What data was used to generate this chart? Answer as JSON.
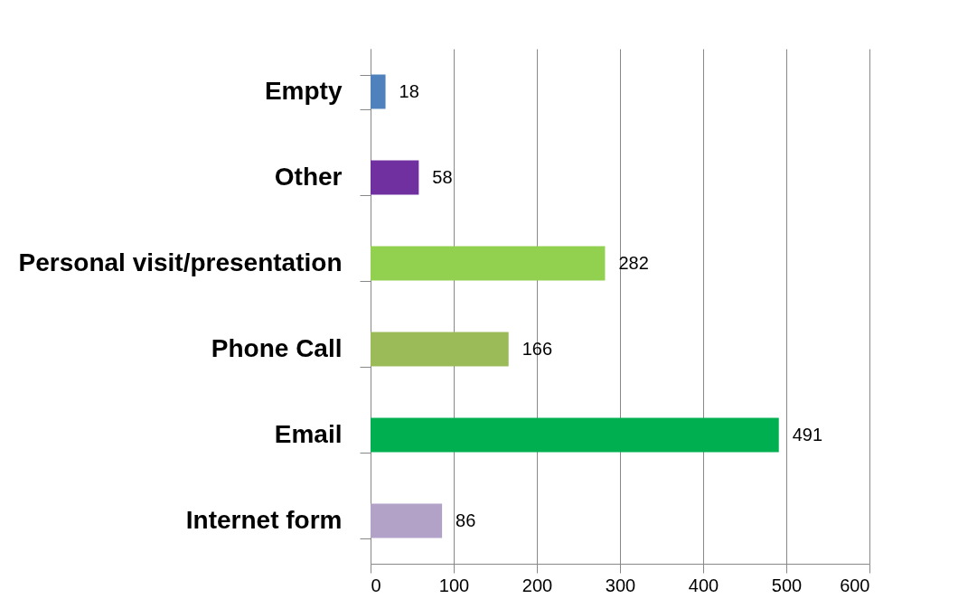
{
  "chart_data": {
    "type": "bar",
    "orientation": "horizontal",
    "categories": [
      "Empty",
      "Other",
      "Personal visit/presentation",
      "Phone Call",
      "Email",
      "Internet form"
    ],
    "values": [
      18,
      58,
      282,
      166,
      491,
      86
    ],
    "colors": [
      "#4f81bd",
      "#7030a0",
      "#92d050",
      "#9bbb59",
      "#00b050",
      "#b3a2c7"
    ],
    "xlim": [
      0,
      600
    ],
    "xticks": [
      0,
      100,
      200,
      300,
      400,
      500,
      600
    ],
    "grid": "x",
    "data_labels": true
  }
}
